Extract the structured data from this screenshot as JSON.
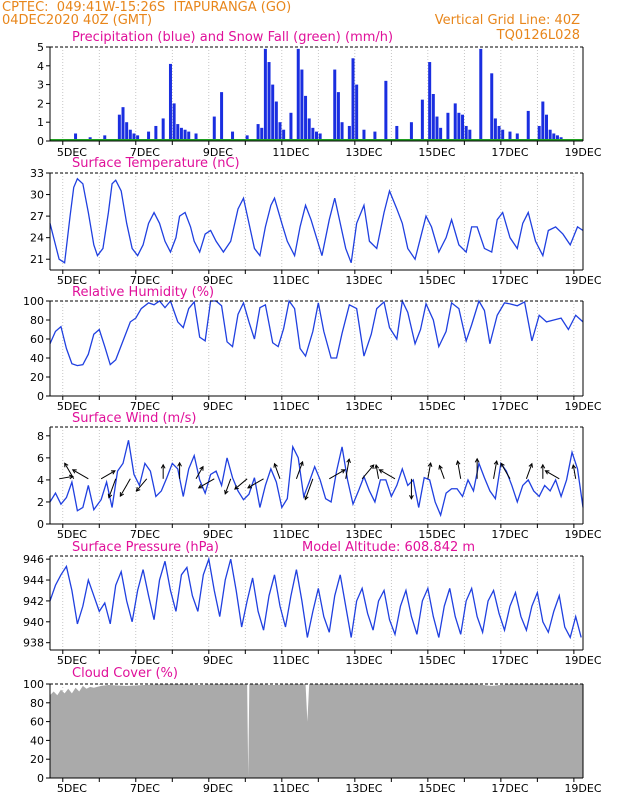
{
  "header": {
    "line1_left": "CPTEC:  049:41W-15:26S  ITAPURANGA (GO)",
    "line2_left": "04DEC2020 40Z (GMT)",
    "line2_right": "Vertical Grid Line: 40Z",
    "line3_right": "TQ0126L028"
  },
  "colors": {
    "header": "#e8861b",
    "title": "#e0109a",
    "series": "#2040e0",
    "snow": "#20a020",
    "cloud": "#aaaaaa",
    "bars": "#1a2ee0"
  },
  "x_tick_labels": [
    "5DEC",
    "7DEC",
    "9DEC",
    "11DEC",
    "13DEC",
    "15DEC",
    "17DEC",
    "19DEC"
  ],
  "chart_data": [
    {
      "id": "precip",
      "type": "bar",
      "title": "Precipitation (blue) and Snow Fall (green) (mm/h)",
      "ylabel": "mm/h",
      "ylim": [
        0,
        5
      ],
      "yticks": [
        "0",
        "1",
        "2",
        "3",
        "4",
        "5"
      ],
      "xlim": [
        4.4,
        19.0
      ],
      "x": [
        4.6,
        5.1,
        5.5,
        5.9,
        6.3,
        6.4,
        6.5,
        6.6,
        6.7,
        6.8,
        7.1,
        7.3,
        7.5,
        7.7,
        7.8,
        7.9,
        8.0,
        8.1,
        8.2,
        8.4,
        8.9,
        9.1,
        9.4,
        9.8,
        10.1,
        10.2,
        10.3,
        10.4,
        10.5,
        10.6,
        10.7,
        10.8,
        11.0,
        11.2,
        11.3,
        11.4,
        11.5,
        11.6,
        11.7,
        11.8,
        12.2,
        12.3,
        12.4,
        12.6,
        12.7,
        12.8,
        13.0,
        13.3,
        13.6,
        13.9,
        14.3,
        14.6,
        14.8,
        14.9,
        15.0,
        15.1,
        15.3,
        15.5,
        15.6,
        15.7,
        15.8,
        15.9,
        16.2,
        16.5,
        16.6,
        16.7,
        16.8,
        17.0,
        17.2,
        17.5,
        17.8,
        17.9,
        18.0,
        18.1,
        18.2,
        18.3,
        18.4,
        18.6
      ],
      "values": [
        0.1,
        0.4,
        0.2,
        0.3,
        1.4,
        1.8,
        1.0,
        0.6,
        0.4,
        0.3,
        0.5,
        0.8,
        1.2,
        4.1,
        2.0,
        0.9,
        0.7,
        0.6,
        0.5,
        0.4,
        1.3,
        2.6,
        0.5,
        0.3,
        0.9,
        0.7,
        4.9,
        4.2,
        3.0,
        2.1,
        1.0,
        0.6,
        1.5,
        4.9,
        3.8,
        2.4,
        1.2,
        0.7,
        0.5,
        0.4,
        3.8,
        2.6,
        1.0,
        0.8,
        4.4,
        3.0,
        0.6,
        0.5,
        3.2,
        0.8,
        1.0,
        2.2,
        4.2,
        2.5,
        1.3,
        0.7,
        1.5,
        2.0,
        1.5,
        1.4,
        0.8,
        0.6,
        4.9,
        3.6,
        1.2,
        0.8,
        0.6,
        0.5,
        0.4,
        1.6,
        0.8,
        2.1,
        1.4,
        0.6,
        0.4,
        0.3,
        0.2,
        0.1
      ],
      "snow": 0
    },
    {
      "id": "temp",
      "type": "line",
      "title": "Surface Temperature (nC)",
      "ylabel": "nC",
      "ylim": [
        19.5,
        33
      ],
      "yticks": [
        "21",
        "24",
        "27",
        "30",
        "33"
      ],
      "xlim": [
        4.4,
        19.0
      ],
      "x": [
        4.4,
        4.55,
        4.65,
        4.8,
        4.95,
        5.05,
        5.15,
        5.3,
        5.45,
        5.6,
        5.7,
        5.85,
        6.0,
        6.1,
        6.2,
        6.35,
        6.5,
        6.65,
        6.8,
        6.95,
        7.1,
        7.25,
        7.4,
        7.55,
        7.7,
        7.85,
        7.95,
        8.1,
        8.25,
        8.35,
        8.5,
        8.65,
        8.8,
        8.95,
        9.15,
        9.35,
        9.55,
        9.7,
        9.85,
        10.0,
        10.15,
        10.3,
        10.45,
        10.55,
        10.75,
        10.9,
        11.1,
        11.25,
        11.4,
        11.55,
        11.7,
        11.85,
        12.05,
        12.2,
        12.35,
        12.5,
        12.65,
        12.8,
        13.0,
        13.15,
        13.35,
        13.55,
        13.7,
        13.9,
        14.05,
        14.2,
        14.4,
        14.55,
        14.7,
        14.85,
        15.05,
        15.25,
        15.4,
        15.6,
        15.8,
        15.95,
        16.1,
        16.3,
        16.5,
        16.65,
        16.8,
        17.0,
        17.2,
        17.35,
        17.5,
        17.7,
        17.9,
        18.05,
        18.25,
        18.45,
        18.65,
        18.85,
        19.0
      ],
      "values": [
        26.0,
        23.0,
        21.0,
        20.5,
        27.0,
        31.0,
        32.2,
        31.5,
        27.5,
        23.0,
        21.5,
        22.5,
        27.5,
        31.5,
        32.0,
        30.5,
        26.0,
        22.5,
        21.5,
        23.0,
        26.0,
        27.5,
        26.0,
        23.5,
        22.0,
        24.0,
        27.0,
        27.5,
        25.5,
        23.5,
        22.0,
        24.5,
        25.0,
        23.5,
        22.0,
        23.5,
        28.0,
        29.5,
        26.0,
        22.5,
        21.5,
        25.5,
        28.5,
        29.5,
        26.0,
        23.5,
        21.5,
        25.5,
        28.5,
        26.5,
        24.0,
        21.5,
        26.5,
        29.5,
        26.0,
        22.5,
        20.5,
        26.0,
        28.5,
        23.5,
        22.5,
        27.5,
        30.5,
        28.0,
        26.0,
        22.5,
        21.0,
        24.0,
        27.0,
        25.5,
        22.0,
        24.0,
        26.5,
        23.0,
        22.0,
        25.5,
        25.5,
        22.5,
        22.0,
        26.5,
        27.5,
        24.0,
        22.5,
        26.0,
        27.5,
        23.5,
        21.5,
        25.0,
        25.5,
        24.5,
        23.0,
        25.5,
        25.0
      ]
    },
    {
      "id": "rh",
      "type": "line",
      "title": "Relative Humidity (%)",
      "ylabel": "%",
      "ylim": [
        0,
        100
      ],
      "yticks": [
        "0",
        "20",
        "40",
        "60",
        "80",
        "100"
      ],
      "xlim": [
        4.4,
        19.0
      ],
      "x": [
        4.4,
        4.55,
        4.7,
        4.85,
        5.0,
        5.15,
        5.3,
        5.45,
        5.6,
        5.75,
        5.9,
        6.05,
        6.2,
        6.4,
        6.6,
        6.75,
        6.9,
        7.1,
        7.25,
        7.4,
        7.55,
        7.7,
        7.9,
        8.05,
        8.2,
        8.35,
        8.5,
        8.65,
        8.8,
        8.95,
        9.1,
        9.25,
        9.4,
        9.55,
        9.7,
        9.85,
        10.0,
        10.15,
        10.3,
        10.5,
        10.65,
        10.8,
        10.95,
        11.1,
        11.25,
        11.4,
        11.6,
        11.75,
        11.9,
        12.1,
        12.25,
        12.4,
        12.6,
        12.8,
        13.0,
        13.2,
        13.35,
        13.55,
        13.7,
        13.9,
        14.05,
        14.2,
        14.4,
        14.55,
        14.7,
        14.9,
        15.05,
        15.25,
        15.4,
        15.6,
        15.8,
        15.95,
        16.15,
        16.3,
        16.45,
        16.65,
        16.85,
        17.0,
        17.2,
        17.4,
        17.6,
        17.8,
        18.0,
        18.2,
        18.4,
        18.6,
        18.8,
        19.0
      ],
      "values": [
        55.0,
        68.0,
        73.0,
        50.0,
        34.0,
        32.0,
        33.0,
        44.0,
        65.0,
        70.0,
        52.0,
        33.0,
        38.0,
        58.0,
        78.0,
        82.0,
        92.0,
        98.0,
        96.0,
        100.0,
        93.0,
        100.0,
        78.0,
        72.0,
        92.0,
        99.0,
        62.0,
        58.0,
        100.0,
        100.0,
        95.0,
        57.0,
        52.0,
        86.0,
        98.0,
        78.0,
        60.0,
        93.0,
        96.0,
        56.0,
        52.0,
        71.0,
        100.0,
        92.0,
        50.0,
        42.0,
        68.0,
        98.0,
        68.0,
        40.0,
        40.0,
        66.0,
        96.0,
        92.0,
        42.0,
        65.0,
        92.0,
        99.0,
        72.0,
        60.0,
        100.0,
        88.0,
        55.0,
        70.0,
        97.0,
        80.0,
        52.0,
        68.0,
        98.0,
        92.0,
        58.0,
        75.0,
        100.0,
        90.0,
        55.0,
        85.0,
        98.0,
        97.0,
        95.0,
        99.0,
        58.0,
        85.0,
        78.0,
        80.0,
        82.0,
        70.0,
        85.0,
        78.0
      ]
    },
    {
      "id": "wind",
      "type": "line",
      "title": "Surface Wind (m/s)",
      "ylabel": "m/s",
      "ylim": [
        0,
        8.8
      ],
      "yticks": [
        "0",
        "2",
        "4",
        "6",
        "8"
      ],
      "xlim": [
        4.4,
        19.0
      ],
      "x": [
        4.4,
        4.55,
        4.7,
        4.85,
        5.0,
        5.15,
        5.3,
        5.45,
        5.6,
        5.8,
        5.95,
        6.1,
        6.25,
        6.4,
        6.55,
        6.7,
        6.85,
        7.0,
        7.15,
        7.3,
        7.45,
        7.6,
        7.75,
        7.9,
        8.05,
        8.2,
        8.35,
        8.5,
        8.65,
        8.8,
        8.95,
        9.1,
        9.25,
        9.4,
        9.55,
        9.7,
        9.85,
        10.0,
        10.15,
        10.3,
        10.45,
        10.6,
        10.75,
        10.9,
        11.05,
        11.2,
        11.35,
        11.5,
        11.65,
        11.8,
        11.95,
        12.1,
        12.25,
        12.4,
        12.55,
        12.7,
        12.85,
        13.0,
        13.15,
        13.3,
        13.45,
        13.6,
        13.75,
        13.9,
        14.05,
        14.2,
        14.35,
        14.5,
        14.65,
        14.8,
        14.95,
        15.1,
        15.25,
        15.4,
        15.55,
        15.7,
        15.85,
        16.0,
        16.15,
        16.3,
        16.45,
        16.6,
        16.75,
        16.9,
        17.05,
        17.2,
        17.35,
        17.5,
        17.65,
        17.8,
        17.95,
        18.1,
        18.25,
        18.4,
        18.55,
        18.7,
        18.85,
        19.0
      ],
      "values": [
        2.0,
        2.8,
        1.8,
        2.4,
        3.8,
        1.2,
        1.5,
        3.5,
        1.3,
        2.2,
        3.8,
        1.5,
        4.8,
        5.5,
        7.6,
        4.5,
        3.5,
        5.5,
        4.8,
        2.5,
        3.0,
        4.2,
        5.5,
        5.0,
        2.5,
        5.0,
        6.2,
        4.0,
        2.8,
        4.5,
        4.8,
        3.5,
        6.0,
        4.2,
        3.0,
        2.2,
        2.7,
        4.2,
        1.5,
        3.5,
        5.0,
        3.8,
        1.5,
        2.3,
        7.0,
        6.0,
        2.5,
        3.8,
        5.2,
        4.0,
        2.3,
        2.0,
        4.8,
        7.0,
        4.0,
        1.8,
        3.0,
        4.3,
        3.0,
        2.0,
        4.0,
        4.0,
        2.5,
        3.5,
        5.0,
        3.5,
        4.0,
        1.5,
        4.2,
        4.0,
        2.0,
        0.8,
        2.8,
        3.2,
        3.2,
        2.5,
        4.0,
        3.0,
        5.5,
        4.2,
        3.0,
        2.3,
        5.5,
        4.8,
        3.5,
        2.0,
        3.5,
        4.0,
        3.0,
        2.5,
        3.5,
        3.0,
        4.0,
        2.5,
        4.0,
        6.5,
        5.0,
        1.5
      ],
      "arrows_x": [
        4.65,
        5.05,
        5.45,
        5.8,
        6.2,
        6.6,
        7.05,
        7.5,
        7.95,
        8.4,
        8.9,
        9.35,
        9.8,
        10.25,
        10.7,
        11.15,
        11.6,
        12.05,
        12.5,
        12.95,
        13.4,
        13.85,
        14.3,
        14.75,
        15.2,
        15.65,
        16.1,
        16.55,
        17.0,
        17.45,
        17.9,
        18.35,
        18.8
      ],
      "arrows_dir_deg": [
        80,
        330,
        300,
        60,
        200,
        210,
        220,
        0,
        0,
        30,
        240,
        200,
        230,
        240,
        340,
        20,
        200,
        60,
        10,
        40,
        350,
        300,
        180,
        10,
        340,
        350,
        0,
        10,
        330,
        20,
        0,
        300,
        350
      ],
      "arrows_len": [
        14,
        18,
        18,
        16,
        20,
        20,
        16,
        14,
        16,
        14,
        18,
        16,
        16,
        18,
        16,
        18,
        22,
        18,
        20,
        18,
        14,
        18,
        20,
        16,
        14,
        18,
        20,
        18,
        18,
        16,
        14,
        16,
        14
      ]
    },
    {
      "id": "press",
      "type": "line",
      "title": "Surface Pressure (hPa)",
      "annotation": "Model Altitude: 608.842  m",
      "ylabel": "hPa",
      "ylim": [
        937.3,
        946.3
      ],
      "yticks": [
        "938",
        "940",
        "942",
        "944",
        "946"
      ],
      "xlim": [
        4.4,
        19.0
      ],
      "x": [
        4.4,
        4.55,
        4.7,
        4.85,
        5.0,
        5.15,
        5.3,
        5.45,
        5.6,
        5.75,
        5.9,
        6.05,
        6.2,
        6.35,
        6.5,
        6.65,
        6.8,
        6.95,
        7.1,
        7.25,
        7.4,
        7.55,
        7.7,
        7.85,
        8.0,
        8.15,
        8.3,
        8.45,
        8.6,
        8.75,
        8.9,
        9.05,
        9.2,
        9.35,
        9.5,
        9.65,
        9.8,
        9.95,
        10.1,
        10.25,
        10.4,
        10.55,
        10.7,
        10.85,
        11.0,
        11.15,
        11.3,
        11.45,
        11.6,
        11.75,
        11.9,
        12.05,
        12.2,
        12.35,
        12.5,
        12.65,
        12.8,
        12.95,
        13.1,
        13.25,
        13.4,
        13.55,
        13.7,
        13.85,
        14.0,
        14.15,
        14.3,
        14.45,
        14.6,
        14.75,
        14.9,
        15.05,
        15.2,
        15.35,
        15.5,
        15.65,
        15.8,
        15.95,
        16.1,
        16.25,
        16.4,
        16.55,
        16.7,
        16.85,
        17.0,
        17.15,
        17.3,
        17.45,
        17.6,
        17.75,
        17.9,
        18.05,
        18.2,
        18.35,
        18.5,
        18.65,
        18.8,
        18.95
      ],
      "values": [
        942.0,
        943.5,
        944.5,
        945.3,
        943.0,
        939.8,
        941.5,
        944.0,
        942.5,
        941.0,
        941.8,
        939.8,
        943.5,
        944.8,
        942.0,
        940.0,
        943.0,
        945.0,
        942.5,
        940.2,
        944.0,
        945.8,
        943.0,
        941.0,
        944.5,
        945.2,
        942.5,
        941.0,
        944.5,
        946.0,
        943.0,
        940.5,
        944.0,
        946.0,
        943.0,
        939.5,
        942.0,
        944.2,
        941.0,
        939.2,
        942.5,
        944.5,
        941.5,
        939.5,
        942.5,
        945.0,
        942.0,
        938.5,
        941.0,
        943.2,
        940.5,
        939.0,
        942.5,
        944.5,
        941.5,
        938.5,
        942.0,
        943.2,
        940.8,
        939.2,
        942.0,
        943.0,
        940.2,
        938.8,
        941.5,
        943.0,
        940.5,
        938.8,
        942.0,
        943.2,
        940.5,
        938.5,
        941.5,
        943.2,
        940.5,
        938.8,
        942.0,
        943.2,
        940.5,
        939.0,
        942.0,
        943.0,
        940.8,
        939.2,
        941.5,
        942.8,
        940.5,
        939.2,
        941.5,
        942.8,
        940.0,
        939.0,
        941.0,
        942.5,
        939.5,
        938.5,
        940.5,
        938.5
      ]
    },
    {
      "id": "cloud",
      "type": "area",
      "title": "Cloud Cover (%)",
      "ylabel": "%",
      "ylim": [
        0,
        100
      ],
      "yticks": [
        "0",
        "20",
        "40",
        "60",
        "80",
        "100"
      ],
      "xlim": [
        4.4,
        19.0
      ],
      "x": [
        4.4,
        4.5,
        4.6,
        4.7,
        4.8,
        4.9,
        5.0,
        5.1,
        5.2,
        5.3,
        5.4,
        5.5,
        5.6,
        5.8,
        6.0,
        6.5,
        7.0,
        7.5,
        8.0,
        8.5,
        9.0,
        9.5,
        9.8,
        9.83,
        9.86,
        10.0,
        10.5,
        11.0,
        11.4,
        11.45,
        11.5,
        12.0,
        13.0,
        14.0,
        15.0,
        16.0,
        16.5,
        17.0,
        18.0,
        19.0
      ],
      "values": [
        88,
        92,
        88,
        94,
        90,
        95,
        90,
        96,
        92,
        98,
        95,
        97,
        96,
        98,
        99,
        98,
        99,
        100,
        100,
        99,
        100,
        100,
        100,
        2,
        100,
        100,
        99,
        100,
        100,
        60,
        100,
        100,
        100,
        100,
        100,
        100,
        98,
        100,
        100,
        100
      ]
    }
  ]
}
